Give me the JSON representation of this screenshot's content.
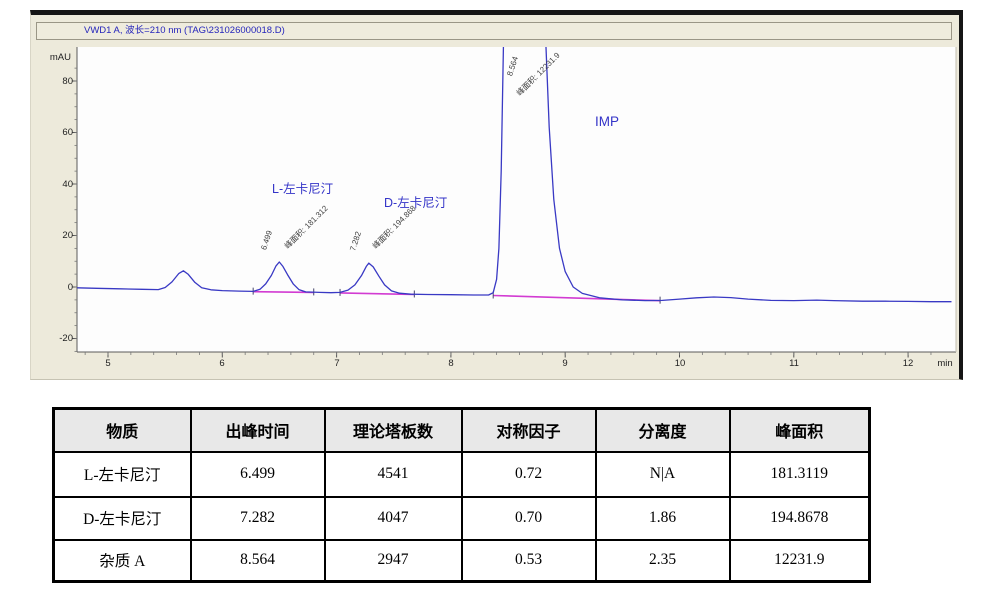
{
  "window": {
    "title": "VWD1 A, 波长=210 nm (TAG\\231026000018.D)"
  },
  "chromatogram": {
    "y_unit": "mAU",
    "x_unit": "min",
    "peak_labels": [
      {
        "name": "L-左卡尼汀",
        "rt": "6.499",
        "area": "峰面积: 181.312"
      },
      {
        "name": "D-左卡尼汀",
        "rt": "7.282",
        "area": "峰面积: 194.868"
      },
      {
        "name": "IMP",
        "rt": "8.564",
        "area": "峰面积: 12231.9"
      }
    ],
    "colors": {
      "trace": "#3939c4",
      "baseline": "#d23bd2",
      "label_blue": "#3434c8",
      "panel_bg": "#edeadb"
    }
  },
  "table": {
    "headers": [
      "物质",
      "出峰时间",
      "理论塔板数",
      "对称因子",
      "分离度",
      "峰面积"
    ],
    "rows": [
      [
        "L-左卡尼汀",
        "6.499",
        "4541",
        "0.72",
        "N|A",
        "181.3119"
      ],
      [
        "D-左卡尼汀",
        "7.282",
        "4047",
        "0.70",
        "1.86",
        "194.8678"
      ],
      [
        "杂质 A",
        "8.564",
        "2947",
        "0.53",
        "2.35",
        "12231.9"
      ]
    ]
  },
  "chart_data": [
    {
      "type": "line",
      "title": "VWD1 A, 波长=210 nm (TAG\\231026000018.D)",
      "xlabel": "min",
      "ylabel": "mAU",
      "xlim": [
        4.73,
        12.38
      ],
      "ylim": [
        -28,
        90
      ],
      "x_ticks": [
        5,
        6,
        7,
        8,
        9,
        10,
        11,
        12
      ],
      "y_ticks": [
        80,
        60,
        40,
        20,
        0,
        -20
      ],
      "grid": false,
      "legend": "none",
      "peaks": [
        {
          "rt": 6.499,
          "name": "L-左卡尼汀",
          "area": 181.312,
          "apex_mAU": 9.7
        },
        {
          "rt": 7.282,
          "name": "D-左卡尼汀",
          "area": 194.868,
          "apex_mAU": 9.3
        },
        {
          "rt": 8.564,
          "name": "IMP (杂质A)",
          "area": 12231.9,
          "apex_mAU": "off-scale, clipped above plot top (~90 mAU)"
        }
      ],
      "trace": [
        [
          4.73,
          -0.3
        ],
        [
          4.9,
          -0.5
        ],
        [
          5.1,
          -0.7
        ],
        [
          5.3,
          -0.9
        ],
        [
          5.44,
          -1.0
        ],
        [
          5.5,
          -0.2
        ],
        [
          5.56,
          2.0
        ],
        [
          5.62,
          5.3
        ],
        [
          5.66,
          6.3
        ],
        [
          5.7,
          5.0
        ],
        [
          5.76,
          1.8
        ],
        [
          5.82,
          -0.3
        ],
        [
          5.9,
          -1.1
        ],
        [
          6.0,
          -1.4
        ],
        [
          6.15,
          -1.6
        ],
        [
          6.27,
          -1.7
        ],
        [
          6.33,
          -0.9
        ],
        [
          6.38,
          1.2
        ],
        [
          6.43,
          4.5
        ],
        [
          6.47,
          8.2
        ],
        [
          6.499,
          9.7
        ],
        [
          6.53,
          8.0
        ],
        [
          6.57,
          4.8
        ],
        [
          6.62,
          1.2
        ],
        [
          6.67,
          -1.0
        ],
        [
          6.73,
          -1.9
        ],
        [
          6.85,
          -2.1
        ],
        [
          6.95,
          -2.2
        ],
        [
          7.03,
          -2.1
        ],
        [
          7.1,
          -1.2
        ],
        [
          7.16,
          0.8
        ],
        [
          7.22,
          4.6
        ],
        [
          7.26,
          8.0
        ],
        [
          7.282,
          9.3
        ],
        [
          7.32,
          7.8
        ],
        [
          7.37,
          4.2
        ],
        [
          7.42,
          0.8
        ],
        [
          7.48,
          -1.5
        ],
        [
          7.55,
          -2.4
        ],
        [
          7.65,
          -2.8
        ],
        [
          7.8,
          -2.9
        ],
        [
          8.0,
          -3.0
        ],
        [
          8.2,
          -3.1
        ],
        [
          8.33,
          -3.1
        ],
        [
          8.37,
          -2.2
        ],
        [
          8.4,
          3
        ],
        [
          8.42,
          15
        ],
        [
          8.44,
          45
        ],
        [
          8.46,
          95
        ],
        [
          8.83,
          95
        ],
        [
          8.86,
          62
        ],
        [
          8.9,
          34
        ],
        [
          8.95,
          15
        ],
        [
          9.0,
          6
        ],
        [
          9.07,
          0
        ],
        [
          9.15,
          -2.5
        ],
        [
          9.3,
          -4.2
        ],
        [
          9.5,
          -5.0
        ],
        [
          9.7,
          -5.3
        ],
        [
          9.85,
          -5.2
        ],
        [
          10.0,
          -4.7
        ],
        [
          10.15,
          -4.2
        ],
        [
          10.3,
          -3.9
        ],
        [
          10.45,
          -4.1
        ],
        [
          10.6,
          -4.7
        ],
        [
          10.8,
          -5.2
        ],
        [
          11.0,
          -5.3
        ],
        [
          11.2,
          -5.1
        ],
        [
          11.35,
          -5.3
        ],
        [
          11.6,
          -5.5
        ],
        [
          11.8,
          -5.5
        ],
        [
          12.0,
          -5.6
        ],
        [
          12.2,
          -5.7
        ],
        [
          12.38,
          -5.7
        ]
      ],
      "baselines": [
        [
          [
            6.27,
            -1.8
          ],
          [
            6.8,
            -2.1
          ]
        ],
        [
          [
            7.03,
            -2.3
          ],
          [
            7.68,
            -2.9
          ]
        ],
        [
          [
            8.37,
            -3.3
          ],
          [
            9.83,
            -5.3
          ]
        ]
      ]
    },
    {
      "type": "table",
      "columns": [
        "物质",
        "出峰时间",
        "理论塔板数",
        "对称因子",
        "分离度",
        "峰面积"
      ],
      "rows": [
        [
          "L-左卡尼汀",
          "6.499",
          "4541",
          "0.72",
          "N|A",
          "181.3119"
        ],
        [
          "D-左卡尼汀",
          "7.282",
          "4047",
          "0.70",
          "1.86",
          "194.8678"
        ],
        [
          "杂质 A",
          "8.564",
          "2947",
          "0.53",
          "2.35",
          "12231.9"
        ]
      ]
    }
  ]
}
